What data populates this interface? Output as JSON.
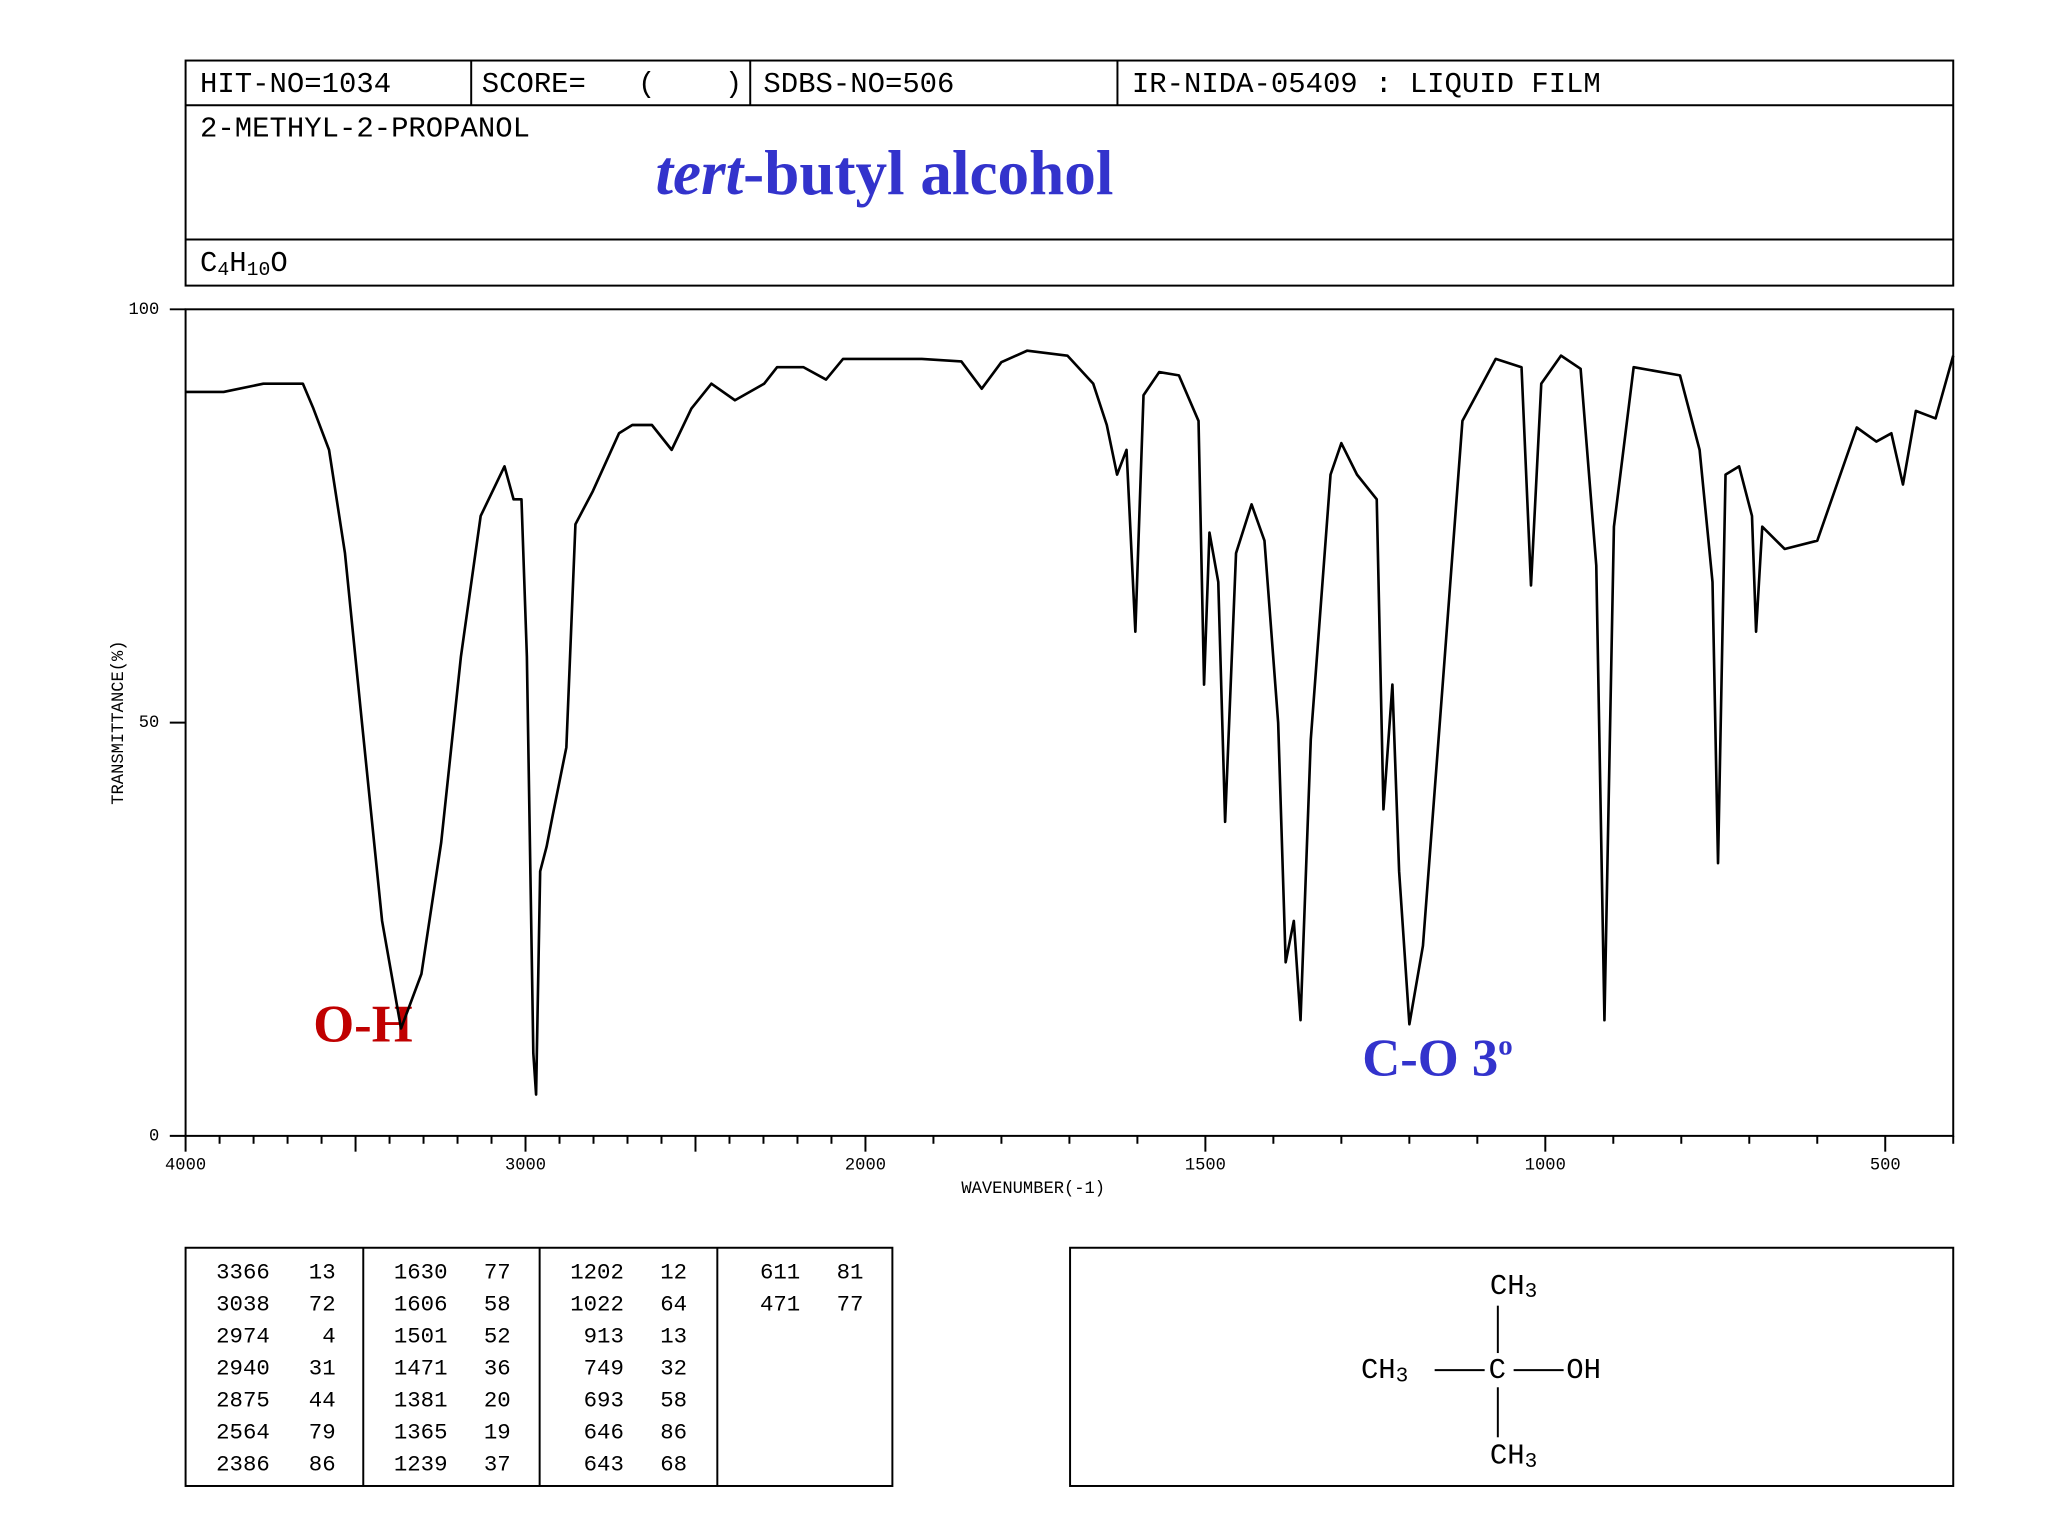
{
  "header": {
    "hit_no": "HIT-NO=1034",
    "score": "SCORE=   (    )",
    "sdbs_no": "SDBS-NO=506",
    "method": "IR-NIDA-05409 : LIQUID FILM",
    "name": "2-METHYL-2-PROPANOL",
    "formula": [
      "C",
      "4",
      "H",
      "10",
      "O"
    ]
  },
  "chart_data": {
    "type": "line",
    "title": [
      "tert",
      "-butyl alcohol"
    ],
    "x_label": "WAVENUMBER(-1)",
    "y_label": "TRANSMITTANCE(%)",
    "annotations": {
      "oh": "O-H",
      "co": "C-O 3",
      "co_sup": "o"
    },
    "xlim": [
      4000,
      400
    ],
    "ylim": [
      0,
      100
    ],
    "xticks": [
      4000,
      3000,
      2000,
      1500,
      1000,
      500
    ],
    "xminorticks": [
      4000,
      3900,
      3800,
      3700,
      3600,
      3500,
      3400,
      3300,
      3200,
      3100,
      3000,
      2900,
      2800,
      2700,
      2600,
      2500,
      2400,
      2300,
      2200,
      2100,
      2000,
      1900,
      1800,
      1700,
      1600,
      1500,
      1400,
      1300,
      1200,
      1100,
      1000,
      900,
      800,
      700,
      600,
      500,
      400
    ],
    "yticks": [
      0,
      50,
      100
    ],
    "x": [
      4000,
      3888,
      3771,
      3655,
      3624,
      3578,
      3531,
      3481,
      3422,
      3366,
      3306,
      3248,
      3190,
      3132,
      3062,
      3035,
      3012,
      2996,
      2977,
      2969,
      2957,
      2938,
      2919,
      2880,
      2853,
      2802,
      2725,
      2686,
      2628,
      2570,
      2512,
      2453,
      2384,
      2298,
      2260,
      2182,
      2116,
      2066,
      1917,
      1859,
      1829,
      1800,
      1762,
      1703,
      1665,
      1645,
      1630,
      1616,
      1603,
      1591,
      1568,
      1539,
      1510,
      1502,
      1494,
      1481,
      1471,
      1455,
      1432,
      1413,
      1393,
      1382,
      1370,
      1360,
      1345,
      1316,
      1300,
      1277,
      1248,
      1238,
      1225,
      1215,
      1200,
      1180,
      1151,
      1122,
      1073,
      1035,
      1021,
      1006,
      977,
      948,
      925,
      913,
      899,
      870,
      802,
      773,
      754,
      746,
      735,
      715,
      696,
      690,
      681,
      648,
      600,
      542,
      513,
      491,
      474,
      455,
      426,
      400
    ],
    "series": [
      {
        "name": "spectrum",
        "color": "#000000",
        "values": [
          90,
          90,
          91,
          91,
          88,
          83,
          70.5,
          50,
          26,
          13,
          19.6,
          35.5,
          58,
          75,
          81,
          77,
          77,
          58,
          10,
          5,
          32,
          35,
          39,
          47,
          74,
          78,
          85,
          86,
          86,
          83,
          88,
          91,
          89,
          91,
          93,
          93,
          91.5,
          94,
          94,
          93.7,
          90.4,
          93.6,
          95,
          94.4,
          91,
          86,
          80,
          83,
          61,
          89.6,
          92.4,
          92,
          86.5,
          54.6,
          73,
          67,
          38,
          70.5,
          76.4,
          72,
          50,
          21,
          26,
          14,
          48,
          80,
          83.8,
          80,
          77,
          39.5,
          54.6,
          32,
          13.5,
          23,
          54.6,
          86.5,
          94,
          93,
          66.6,
          91,
          94.4,
          92.8,
          69,
          14,
          73.7,
          93,
          92,
          83,
          67,
          33,
          80,
          81,
          75,
          61,
          73.7,
          71,
          72,
          85.7,
          84,
          85,
          78.8,
          87.7,
          86.8,
          94.4
        ]
      }
    ]
  },
  "peaks": [
    [
      [
        3366,
        13
      ],
      [
        3038,
        72
      ],
      [
        2974,
        4
      ],
      [
        2940,
        31
      ],
      [
        2875,
        44
      ],
      [
        2564,
        79
      ],
      [
        2386,
        86
      ]
    ],
    [
      [
        1630,
        77
      ],
      [
        1606,
        58
      ],
      [
        1501,
        52
      ],
      [
        1471,
        36
      ],
      [
        1381,
        20
      ],
      [
        1365,
        19
      ],
      [
        1239,
        37
      ]
    ],
    [
      [
        1202,
        12
      ],
      [
        1022,
        64
      ],
      [
        913,
        13
      ],
      [
        749,
        32
      ],
      [
        693,
        58
      ],
      [
        646,
        86
      ],
      [
        643,
        68
      ]
    ],
    [
      [
        611,
        81
      ],
      [
        471,
        77
      ]
    ]
  ],
  "structure": {
    "top": [
      "CH",
      "3"
    ],
    "left": [
      "CH",
      "3"
    ],
    "center": "C",
    "right": "OH",
    "bottom": [
      "CH",
      "3"
    ]
  }
}
